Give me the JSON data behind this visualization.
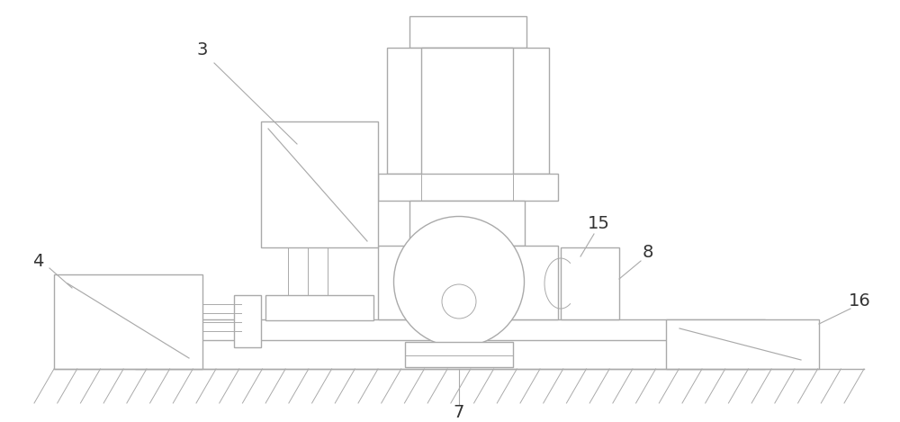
{
  "bg_color": "#ffffff",
  "line_color": "#aaaaaa",
  "label_color": "#333333",
  "figsize": [
    10.0,
    4.69
  ],
  "dpi": 100
}
